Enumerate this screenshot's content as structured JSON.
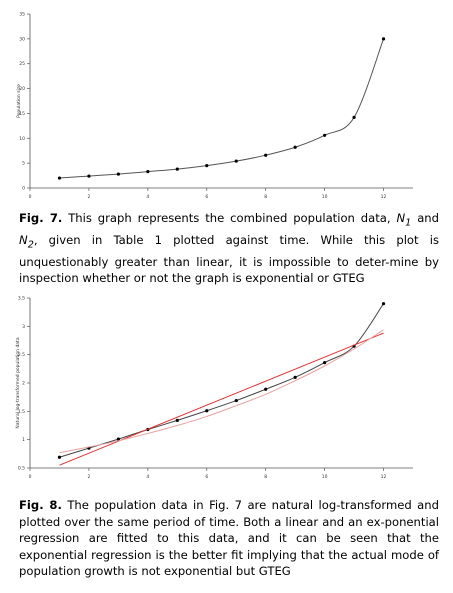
{
  "chart_data": [
    {
      "type": "line",
      "xlabel": "Time in relative units",
      "ylabel": "Population size",
      "xlim": [
        0,
        13
      ],
      "ylim": [
        0,
        35
      ],
      "xticks": [
        0,
        2,
        4,
        6,
        8,
        10,
        12
      ],
      "yticks": [
        0,
        5,
        10,
        15,
        20,
        25,
        30,
        35
      ],
      "grid": false,
      "series": [
        {
          "x": [
            1,
            2,
            3,
            4,
            5,
            6,
            7,
            8,
            9,
            10,
            11,
            12
          ],
          "values": [
            2.0,
            2.4,
            2.8,
            3.3,
            3.8,
            4.5,
            5.4,
            6.6,
            8.2,
            10.6,
            14.2,
            30.0
          ]
        }
      ]
    },
    {
      "type": "line",
      "xlabel": "",
      "ylabel": "Natural log-transformed population data",
      "xlim": [
        0,
        13
      ],
      "ylim": [
        0.5,
        3.5
      ],
      "xticks": [
        0,
        2,
        4,
        6,
        8,
        10,
        12
      ],
      "yticks": [
        0.5,
        1,
        1.5,
        2,
        2.5,
        3,
        3.5
      ],
      "grid": false,
      "series": [
        {
          "x": [
            1,
            2,
            3,
            4,
            5,
            6,
            7,
            8,
            9,
            10,
            11,
            12
          ],
          "values": [
            0.69,
            0.85,
            1.01,
            1.18,
            1.34,
            1.51,
            1.69,
            1.89,
            2.1,
            2.36,
            2.65,
            3.4
          ],
          "color": "#444444"
        },
        {
          "x": [
            1,
            12
          ],
          "values": [
            0.55,
            2.88
          ],
          "color": "#e03030"
        },
        {
          "x": [
            1,
            2,
            3,
            4,
            5,
            6,
            7,
            8,
            9,
            10,
            11,
            12
          ],
          "values": [
            0.77,
            0.87,
            0.98,
            1.11,
            1.25,
            1.41,
            1.6,
            1.8,
            2.04,
            2.3,
            2.6,
            2.94
          ],
          "color": "#e8a0a0"
        }
      ]
    }
  ],
  "caption1": {
    "label": "Fig. 7.",
    "t1": " This graph represents the combined population data, ",
    "n1": "N",
    "n1sub": "1",
    "t2": " and ",
    "n2": "N",
    "n2sub": "2",
    "t3": ", given in Table 1 plotted against time. While this plot is unquestionably greater than linear, it is impossible to deter-mine by inspection whether or not the graph is exponential or GTEG"
  },
  "caption2": {
    "label": "Fig. 8.",
    "text": " The population data in Fig. 7 are natural log-transformed and plotted over the same period of time. Both a linear and an ex-ponential regression are fitted to this data, and it can be seen that the exponential regression is the better fit implying that the actual mode of population growth is not exponential but GTEG"
  }
}
